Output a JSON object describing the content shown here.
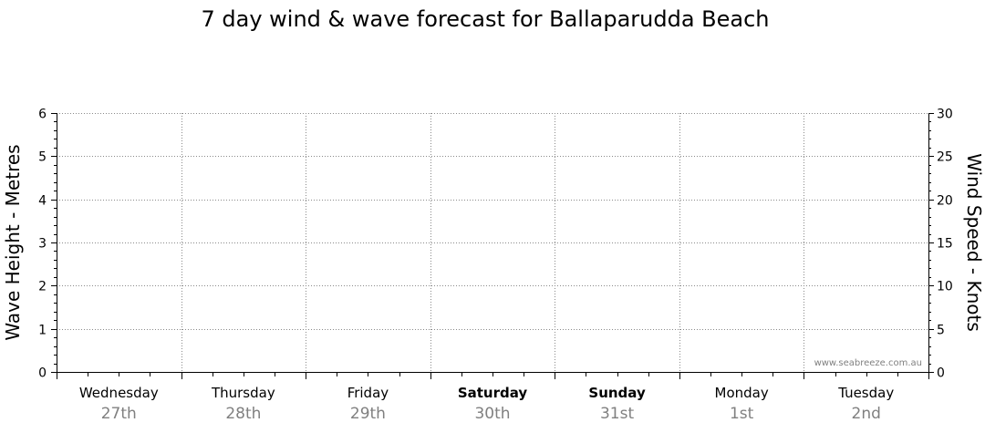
{
  "chart_data": {
    "type": "line",
    "title": "7 day wind & wave forecast for Ballaparudda Beach",
    "ylabel_left": "Wave Height - Metres",
    "ylabel_right": "Wind Speed - Knots",
    "ylim_left": [
      0,
      6
    ],
    "ylim_right": [
      0,
      30
    ],
    "left_ticks": [
      "0",
      "1",
      "2",
      "3",
      "4",
      "5",
      "6"
    ],
    "right_ticks": [
      "0",
      "5",
      "10",
      "15",
      "20",
      "25",
      "30"
    ],
    "grid": true,
    "days": [
      {
        "name": "Wednesday",
        "date": "27th",
        "bold": false
      },
      {
        "name": "Thursday",
        "date": "28th",
        "bold": false
      },
      {
        "name": "Friday",
        "date": "29th",
        "bold": false
      },
      {
        "name": "Saturday",
        "date": "30th",
        "bold": true
      },
      {
        "name": "Sunday",
        "date": "31st",
        "bold": true
      },
      {
        "name": "Monday",
        "date": "1st",
        "bold": false
      },
      {
        "name": "Tuesday",
        "date": "2nd",
        "bold": false
      }
    ],
    "series": [],
    "watermark": "www.seabreeze.com.au"
  }
}
